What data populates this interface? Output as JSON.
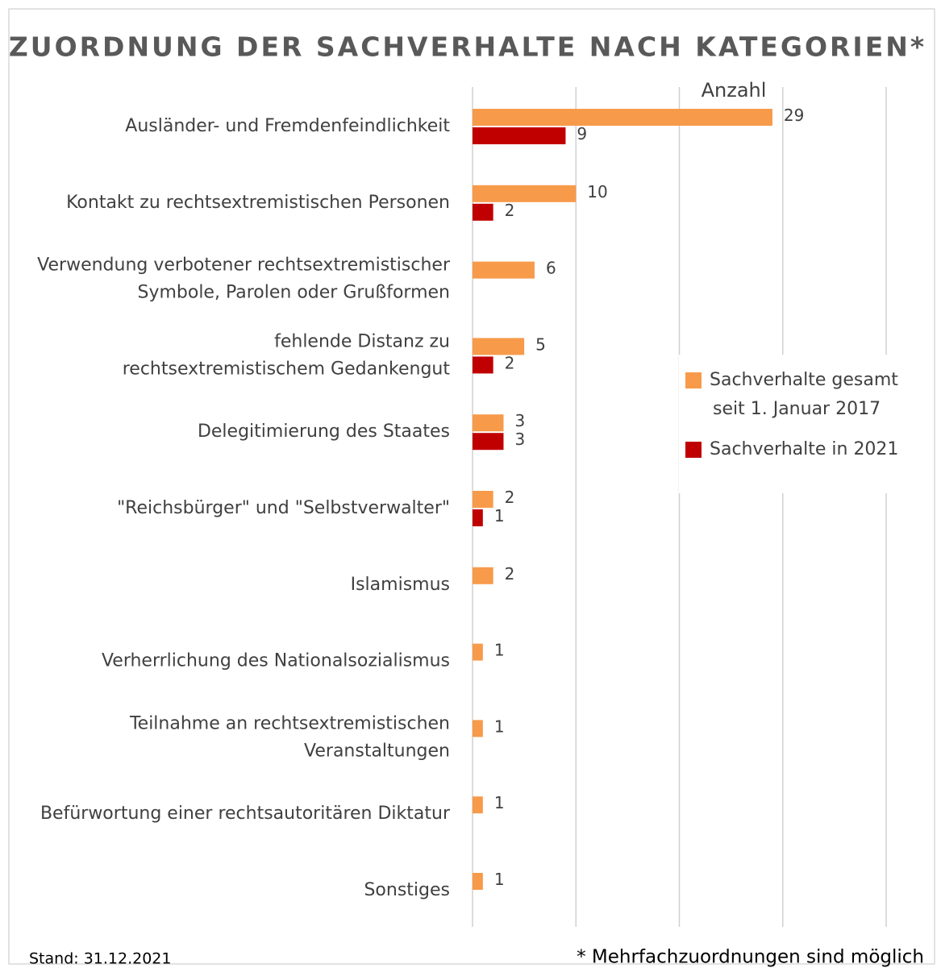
{
  "chart_data": {
    "type": "bar",
    "orientation": "horizontal",
    "title": "ZUORDNUNG DER SACHVERHALTE NACH KATEGORIEN*",
    "x_label": "Anzahl",
    "categories": [
      "Ausländer- und Fremdenfeindlichkeit",
      "Kontakt zu rechtsextremistischen Personen",
      "Verwendung verbotener rechtsextremistischer\nSymbole, Parolen oder Grußformen",
      "fehlende Distanz zu\nrechtsextremistischem Gedankengut",
      "Delegitimierung des Staates",
      "\"Reichsbürger\" und \"Selbstverwalter\"",
      "Islamismus",
      "Verherrlichung des Nationalsozialismus",
      "Teilnahme an rechtsextremistischen\nVeranstaltungen",
      "Befürwortung einer rechtsautoritären Diktatur",
      "Sonstiges"
    ],
    "series": [
      {
        "name": "Sachverhalte gesamt\nseit 1. Januar 2017",
        "color": "#f79a4a",
        "values": [
          29,
          10,
          6,
          5,
          3,
          2,
          2,
          1,
          1,
          1,
          1
        ]
      },
      {
        "name": "Sachverhalte in 2021",
        "color": "#c00000",
        "values": [
          9,
          2,
          null,
          2,
          3,
          1,
          null,
          null,
          null,
          null,
          null
        ]
      }
    ],
    "xlim": [
      0,
      40
    ],
    "xticks": [
      0,
      10,
      20,
      30,
      40
    ],
    "grid": true,
    "legend": "right",
    "footnote_left": "Stand: 31.12.2021",
    "footnote_right": "* Mehrfachzuordnungen sind möglich"
  }
}
